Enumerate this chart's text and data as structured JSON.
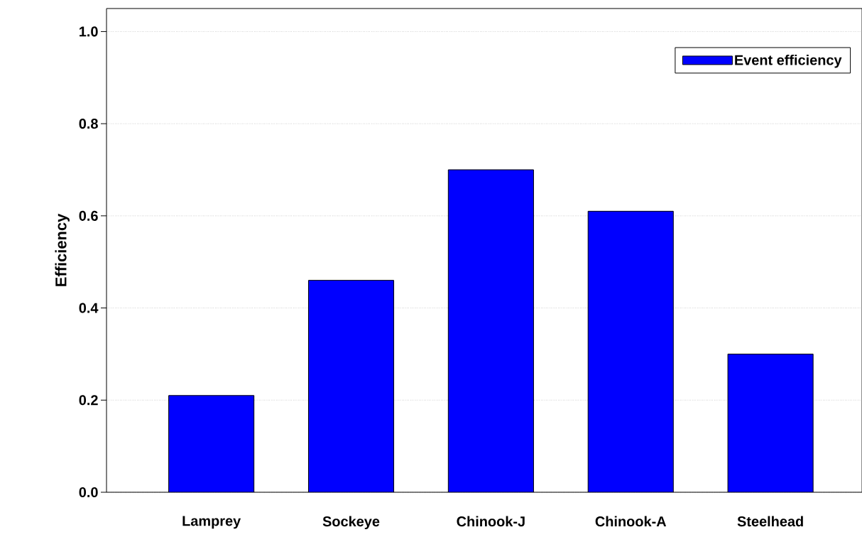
{
  "chart_data": {
    "type": "bar",
    "ylabel": "Efficiency",
    "categories": [
      "Lamprey",
      "Sockeye",
      "Chinook-J",
      "Chinook-A",
      "Steelhead"
    ],
    "series": [
      {
        "name": "Event efficiency",
        "color": "#0000ff",
        "values": [
          0.21,
          0.46,
          0.7,
          0.61,
          0.3
        ]
      }
    ],
    "ylim": [
      0,
      1.05
    ],
    "yticks": [
      {
        "value": 0,
        "label": "0.0"
      },
      0.2,
      0.4,
      0.6,
      0.8,
      {
        "value": 1.0,
        "label": "1.0"
      }
    ],
    "grid": "y",
    "legend": "top right"
  }
}
